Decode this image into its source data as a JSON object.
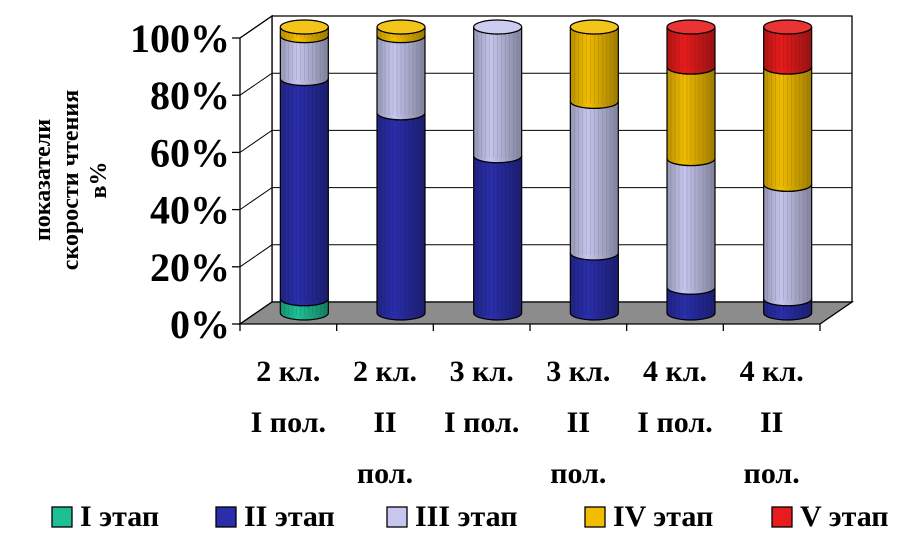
{
  "chart_data": {
    "type": "bar",
    "stacked": true,
    "percent": true,
    "style": "3d-cylinder",
    "ylabel": "показатели скорости чтения в%",
    "ylim": [
      0,
      100
    ],
    "yticks": [
      "0%",
      "20%",
      "40%",
      "60%",
      "80%",
      "100%"
    ],
    "categories": [
      [
        "2 кл.",
        "I пол."
      ],
      [
        "2 кл.",
        "II",
        "пол."
      ],
      [
        "3 кл.",
        "I пол."
      ],
      [
        "3 кл.",
        "II",
        "пол."
      ],
      [
        "4 кл.",
        "I пол."
      ],
      [
        "4 кл.",
        "II",
        "пол."
      ]
    ],
    "series": [
      {
        "name": "I этап",
        "color": "#1fbf96",
        "values": [
          5,
          0,
          0,
          0,
          0,
          0
        ]
      },
      {
        "name": "II этап",
        "color": "#2a2eaa",
        "values": [
          77,
          70,
          55,
          21,
          9,
          5
        ]
      },
      {
        "name": "III этап",
        "color": "#c6c6ee",
        "values": [
          15,
          27,
          45,
          53,
          45,
          40
        ]
      },
      {
        "name": "IV этап",
        "color": "#f2bd00",
        "values": [
          3,
          3,
          0,
          26,
          32,
          41
        ]
      },
      {
        "name": "V этап",
        "color": "#e81c1c",
        "values": [
          0,
          0,
          0,
          0,
          14,
          14
        ]
      }
    ],
    "grid": true,
    "legend_position": "bottom"
  }
}
